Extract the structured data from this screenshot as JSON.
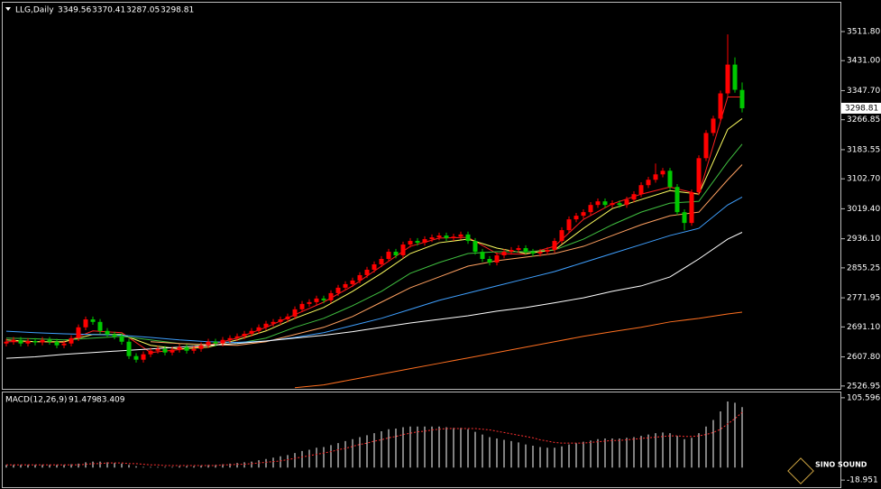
{
  "chart_data": [
    {
      "type": "candlestick",
      "symbol": "LLG,Daily",
      "up_color": "#ff0000",
      "down_color": "#00c800",
      "ylim": [
        2519,
        3592
      ],
      "yticks": [
        {
          "value": 3511.8,
          "label": "3511.80"
        },
        {
          "value": 3431,
          "label": "3431.00"
        },
        {
          "value": 3347.7,
          "label": "3347.70"
        },
        3266.85,
        3183.55,
        {
          "value": 3102.7,
          "label": "3102.70"
        },
        {
          "value": 3019.4,
          "label": "3019.40"
        },
        {
          "value": 2936.1,
          "label": "2936.10"
        },
        2855.25,
        2771.95,
        {
          "value": 2691.1,
          "label": "2691.10"
        },
        {
          "value": 2607.8,
          "label": "2607.80"
        },
        2526.95
      ],
      "open": [
        2645,
        2650,
        2655,
        2645,
        2652,
        2648,
        2655,
        2650,
        2640,
        2645,
        2660,
        2690,
        2712,
        2705,
        2680,
        2670,
        2665,
        2650,
        2610,
        2600,
        2615,
        2625,
        2630,
        2620,
        2628,
        2635,
        2625,
        2630,
        2640,
        2650,
        2645,
        2655,
        2660,
        2665,
        2672,
        2680,
        2690,
        2700,
        2705,
        2712,
        2720,
        2740,
        2755,
        2760,
        2770,
        2765,
        2785,
        2800,
        2810,
        2820,
        2835,
        2850,
        2865,
        2880,
        2900,
        2890,
        2920,
        2930,
        2925,
        2935,
        2940,
        2945,
        2938,
        2942,
        2948,
        2930,
        2900,
        2880,
        2870,
        2890,
        2900,
        2905,
        2910,
        2900,
        2895,
        2900,
        2905,
        2930,
        2960,
        2990,
        3000,
        3010,
        3030,
        3040,
        3030,
        3035,
        3030,
        3045,
        3060,
        3085,
        3100,
        3115,
        3125,
        3080,
        3010,
        2980,
        3065,
        3160,
        3230,
        3270,
        3340,
        3420,
        3349.56
      ],
      "high": [
        2658,
        2663,
        2663,
        2660,
        2660,
        2663,
        2663,
        2658,
        2653,
        2668,
        2698,
        2720,
        2720,
        2713,
        2688,
        2678,
        2673,
        2658,
        2618,
        2623,
        2633,
        2638,
        2638,
        2636,
        2643,
        2643,
        2638,
        2648,
        2658,
        2658,
        2663,
        2668,
        2673,
        2680,
        2688,
        2698,
        2708,
        2713,
        2720,
        2728,
        2748,
        2763,
        2768,
        2778,
        2778,
        2793,
        2808,
        2818,
        2828,
        2843,
        2858,
        2873,
        2888,
        2908,
        2908,
        2928,
        2938,
        2938,
        2943,
        2948,
        2953,
        2953,
        2950,
        2956,
        2956,
        2938,
        2908,
        2888,
        2898,
        2908,
        2913,
        2918,
        2918,
        2908,
        2908,
        2913,
        2938,
        2968,
        2998,
        3008,
        3018,
        3038,
        3048,
        3048,
        3043,
        3043,
        3053,
        3068,
        3093,
        3108,
        3145,
        3133,
        3133,
        3088,
        3018,
        3073,
        3168,
        3238,
        3278,
        3348,
        3504,
        3440,
        3370.41
      ],
      "low": [
        2637,
        2642,
        2637,
        2637,
        2640,
        2640,
        2642,
        2632,
        2632,
        2637,
        2652,
        2682,
        2697,
        2672,
        2662,
        2657,
        2642,
        2602,
        2592,
        2592,
        2607,
        2617,
        2612,
        2612,
        2620,
        2617,
        2617,
        2622,
        2632,
        2637,
        2637,
        2647,
        2652,
        2657,
        2664,
        2672,
        2682,
        2692,
        2697,
        2704,
        2712,
        2732,
        2747,
        2752,
        2757,
        2757,
        2777,
        2792,
        2802,
        2812,
        2827,
        2842,
        2857,
        2872,
        2882,
        2882,
        2912,
        2917,
        2917,
        2927,
        2932,
        2930,
        2930,
        2934,
        2922,
        2892,
        2872,
        2862,
        2862,
        2882,
        2892,
        2897,
        2892,
        2887,
        2887,
        2892,
        2897,
        2922,
        2952,
        2982,
        2992,
        3002,
        3022,
        3022,
        3022,
        3022,
        3022,
        3037,
        3052,
        3077,
        3092,
        3107,
        3072,
        3002,
        2960,
        2972,
        3057,
        3152,
        3222,
        3262,
        3332,
        3342,
        3287.05
      ],
      "close": [
        2650,
        2655,
        2645,
        2652,
        2648,
        2655,
        2650,
        2640,
        2645,
        2660,
        2690,
        2712,
        2705,
        2680,
        2670,
        2665,
        2650,
        2610,
        2600,
        2615,
        2625,
        2630,
        2620,
        2628,
        2635,
        2625,
        2630,
        2640,
        2650,
        2645,
        2655,
        2660,
        2665,
        2672,
        2680,
        2690,
        2700,
        2705,
        2712,
        2720,
        2740,
        2755,
        2760,
        2770,
        2765,
        2785,
        2800,
        2810,
        2820,
        2835,
        2850,
        2865,
        2880,
        2900,
        2890,
        2920,
        2930,
        2925,
        2935,
        2940,
        2945,
        2938,
        2942,
        2948,
        2930,
        2900,
        2880,
        2870,
        2890,
        2900,
        2905,
        2910,
        2900,
        2895,
        2900,
        2905,
        2930,
        2960,
        2990,
        3000,
        3010,
        3030,
        3040,
        3030,
        3035,
        3030,
        3045,
        3060,
        3085,
        3100,
        3115,
        3125,
        3080,
        3010,
        2980,
        3065,
        3160,
        3230,
        3270,
        3340,
        3420,
        3350,
        3298.81
      ],
      "ma_x": [
        0,
        4,
        8,
        12,
        16,
        20,
        24,
        28,
        32,
        36,
        40,
        44,
        48,
        52,
        56,
        60,
        64,
        68,
        72,
        76,
        80,
        84,
        88,
        92,
        96,
        100,
        102
      ],
      "lines": [
        {
          "color": "#ff2020",
          "values": [
            2650,
            2650,
            2648,
            2680,
            2675,
            2620,
            2628,
            2640,
            2660,
            2690,
            2725,
            2760,
            2805,
            2860,
            2915,
            2938,
            2940,
            2895,
            2893,
            2915,
            2990,
            3033,
            3060,
            3080,
            3060,
            3330,
            3330
          ]
        },
        {
          "color": "#ffff60",
          "values": [
            2655,
            2650,
            2650,
            2670,
            2670,
            2640,
            2630,
            2635,
            2655,
            2680,
            2715,
            2745,
            2790,
            2840,
            2895,
            2925,
            2935,
            2910,
            2895,
            2905,
            2965,
            3020,
            3045,
            3070,
            3060,
            3240,
            3270
          ]
        },
        {
          "color": "#40c040",
          "values": [
            2660,
            2658,
            2655,
            2660,
            2665,
            2655,
            2645,
            2640,
            2645,
            2660,
            2690,
            2715,
            2750,
            2790,
            2840,
            2870,
            2895,
            2900,
            2900,
            2905,
            2935,
            2975,
            3010,
            3035,
            3040,
            3150,
            3199
          ]
        },
        {
          "color": "#ffa060",
          "values": [
            null,
            null,
            null,
            null,
            null,
            2650,
            2645,
            2642,
            2640,
            2650,
            2670,
            2690,
            2720,
            2760,
            2800,
            2830,
            2860,
            2875,
            2885,
            2895,
            2915,
            2945,
            2975,
            3000,
            3010,
            3100,
            3142
          ]
        },
        {
          "color": "#3fa0ff",
          "values": [
            2679,
            2675,
            2672,
            2670,
            2668,
            2662,
            2655,
            2650,
            2648,
            2652,
            2662,
            2675,
            2695,
            2715,
            2740,
            2765,
            2785,
            2805,
            2825,
            2845,
            2870,
            2895,
            2920,
            2945,
            2965,
            3030,
            3052
          ]
        },
        {
          "color": "#ffffff",
          "values": [
            2604,
            2608,
            2615,
            2620,
            2625,
            2630,
            2635,
            2640,
            2645,
            2652,
            2660,
            2668,
            2678,
            2690,
            2702,
            2712,
            2722,
            2735,
            2745,
            2758,
            2772,
            2790,
            2805,
            2830,
            2880,
            2935,
            2954
          ]
        },
        {
          "color": "#ff7020",
          "values": [
            null,
            null,
            null,
            null,
            null,
            null,
            null,
            null,
            null,
            null,
            2522,
            2530,
            2545,
            2560,
            2575,
            2590,
            2605,
            2620,
            2635,
            2650,
            2665,
            2678,
            2690,
            2705,
            2715,
            2727,
            2732
          ]
        }
      ]
    },
    {
      "type": "macd",
      "title": "MACD(12,26,9)",
      "ylim": [
        -29.7,
        113.6
      ],
      "yticks": [
        105.596,
        -18.951
      ],
      "series": [
        {
          "color": "#ffffff",
          "values": [
            4,
            4,
            4,
            4,
            4,
            4,
            4,
            4,
            4,
            5,
            6,
            8,
            9,
            9,
            8,
            7,
            6,
            4,
            2,
            1,
            1,
            1,
            1,
            1,
            2,
            2,
            2,
            3,
            4,
            4,
            5,
            6,
            7,
            8,
            9,
            11,
            13,
            15,
            17,
            19,
            22,
            25,
            27,
            30,
            31,
            34,
            37,
            40,
            43,
            46,
            49,
            52,
            55,
            58,
            59,
            61,
            62,
            62,
            62,
            62,
            62,
            61,
            60,
            60,
            58,
            54,
            50,
            46,
            44,
            42,
            40,
            38,
            35,
            33,
            31,
            30,
            30,
            32,
            35,
            37,
            39,
            41,
            43,
            44,
            44,
            44,
            45,
            46,
            48,
            50,
            52,
            53,
            52,
            48,
            43,
            45,
            52,
            62,
            72,
            85,
            100,
            98,
            91.479
          ]
        },
        {
          "color": "#ff3030",
          "values": [
            4,
            4,
            4,
            4,
            4,
            4,
            4,
            4,
            4,
            4,
            4,
            5,
            6,
            6,
            7,
            7,
            7,
            6,
            6,
            5,
            4,
            4,
            3,
            3,
            3,
            3,
            3,
            3,
            3,
            3,
            4,
            4,
            5,
            5,
            6,
            7,
            8,
            9,
            10,
            12,
            14,
            16,
            18,
            20,
            22,
            24,
            27,
            29,
            32,
            35,
            37,
            40,
            42,
            45,
            47,
            50,
            52,
            54,
            55,
            57,
            58,
            59,
            59,
            59,
            59,
            59,
            58,
            57,
            55,
            53,
            51,
            49,
            47,
            45,
            42,
            40,
            38,
            37,
            37,
            37,
            37,
            38,
            39,
            40,
            41,
            41,
            42,
            43,
            44,
            45,
            46,
            47,
            48,
            48,
            47,
            47,
            48,
            50,
            53,
            58,
            66,
            74,
            83.409
          ]
        }
      ]
    }
  ]
}
